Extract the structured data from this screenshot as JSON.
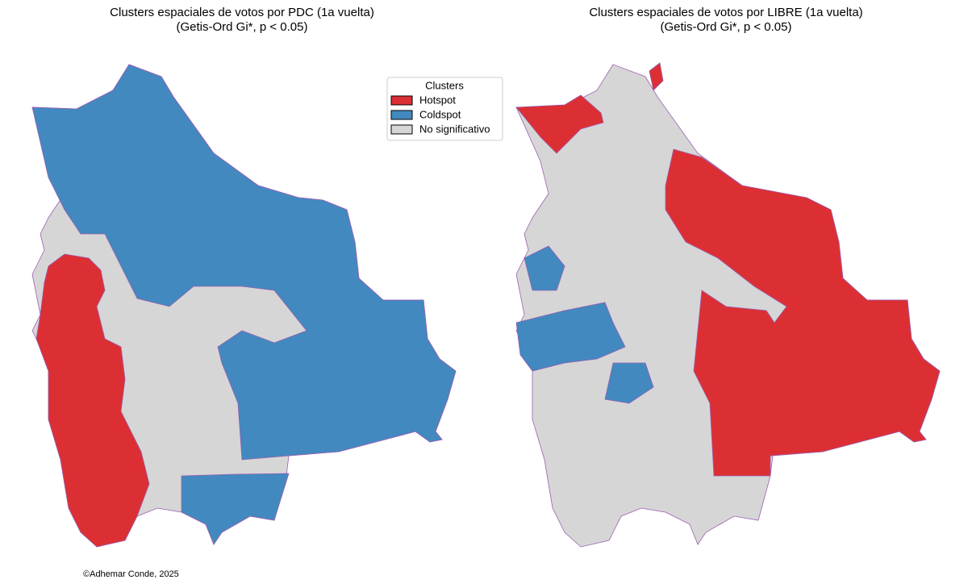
{
  "maps": [
    {
      "title": "Clusters espaciales de votos por PDC (1a vuelta)",
      "subtitle": "(Getis-Ord Gi*, p < 0.05)"
    },
    {
      "title": "Clusters espaciales de votos por LIBRE (1a vuelta)",
      "subtitle": "(Getis-Ord Gi*, p < 0.05)"
    }
  ],
  "legend": {
    "title": "Clusters",
    "items": [
      {
        "label": "Hotspot",
        "color": "#dc2f34"
      },
      {
        "label": "Coldspot",
        "color": "#4289c0"
      },
      {
        "label": "No significativo",
        "color": "#d6d6d6"
      }
    ]
  },
  "credit": "©Adhemar Conde, 2025"
}
